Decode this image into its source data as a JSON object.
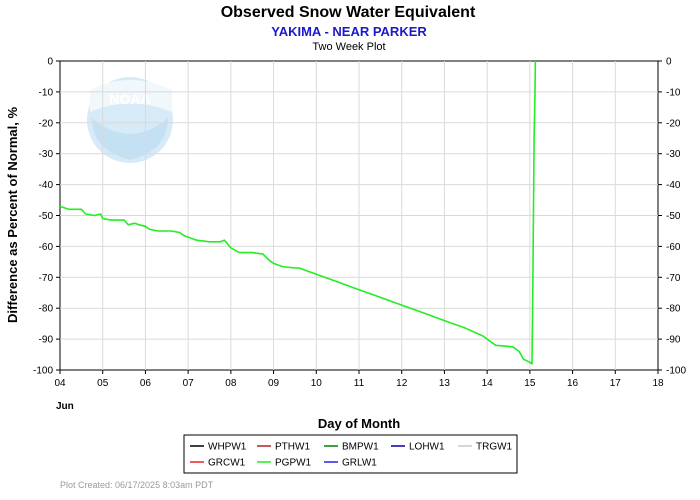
{
  "header": {
    "title": "Observed Snow Water Equivalent",
    "subtitle": "YAKIMA - NEAR PARKER",
    "sub_subtitle": "Two Week Plot"
  },
  "watermark": {
    "logo_text": "NOAA"
  },
  "chart_data": {
    "type": "line",
    "title": "Observed Snow Water Equivalent",
    "subtitle": "YAKIMA - NEAR PARKER",
    "xlabel": "Day of Month",
    "x_sublabel": "Jun",
    "ylabel": "Difference as Percent of Normal, %",
    "xlim": [
      4,
      18
    ],
    "ylim": [
      -100,
      0
    ],
    "x_ticks": [
      "04",
      "05",
      "06",
      "07",
      "08",
      "09",
      "10",
      "11",
      "12",
      "13",
      "14",
      "15",
      "16",
      "17",
      "18"
    ],
    "y_ticks": [
      "0",
      "-10",
      "-20",
      "-30",
      "-40",
      "-50",
      "-60",
      "-70",
      "-80",
      "-90",
      "-100"
    ],
    "grid": true,
    "legend_position": "bottom",
    "legend": [
      {
        "name": "WHPW1",
        "color": "#000000"
      },
      {
        "name": "PTHW1",
        "color": "#b22222"
      },
      {
        "name": "BMPW1",
        "color": "#008000"
      },
      {
        "name": "LOHW1",
        "color": "#0000aa"
      },
      {
        "name": "TRGW1",
        "color": "#c8c8c8"
      },
      {
        "name": "GRCW1",
        "color": "#ee2222"
      },
      {
        "name": "PGPW1",
        "color": "#22ee22"
      },
      {
        "name": "GRLW1",
        "color": "#2222ee"
      }
    ],
    "series": [
      {
        "name": "PGPW1",
        "color": "#22ee22",
        "x": [
          4.0,
          4.2,
          4.5,
          4.6,
          4.8,
          4.95,
          5.0,
          5.2,
          5.5,
          5.6,
          5.75,
          5.85,
          6.0,
          6.1,
          6.3,
          6.6,
          6.8,
          6.9,
          7.0,
          7.2,
          7.5,
          7.75,
          7.85,
          8.0,
          8.2,
          8.5,
          8.75,
          8.9,
          9.0,
          9.2,
          9.5,
          9.6,
          10.0,
          10.5,
          11.0,
          11.5,
          12.0,
          12.5,
          13.0,
          13.5,
          13.9,
          14.0,
          14.2,
          14.6,
          14.75,
          14.85,
          15.0,
          15.05,
          15.07,
          15.1,
          15.12,
          15.13
        ],
        "y": [
          -47,
          -48,
          -48,
          -49.5,
          -50,
          -49.5,
          -51,
          -51.5,
          -51.5,
          -53,
          -52.5,
          -53,
          -53.5,
          -54.5,
          -55,
          -55,
          -55.5,
          -56.5,
          -57,
          -58,
          -58.5,
          -58.5,
          -58,
          -60.5,
          -62,
          -62,
          -62.5,
          -64.5,
          -65.5,
          -66.5,
          -67,
          -67,
          -69,
          -71.5,
          -74,
          -76.5,
          -79,
          -81.5,
          -84,
          -86.5,
          -89,
          -90,
          -92,
          -92.5,
          -94,
          -96.5,
          -97.5,
          -98,
          -74,
          -25,
          -10,
          0
        ]
      }
    ]
  },
  "footer": {
    "text": "Plot Created: 06/17/2025 8:03am PDT"
  }
}
